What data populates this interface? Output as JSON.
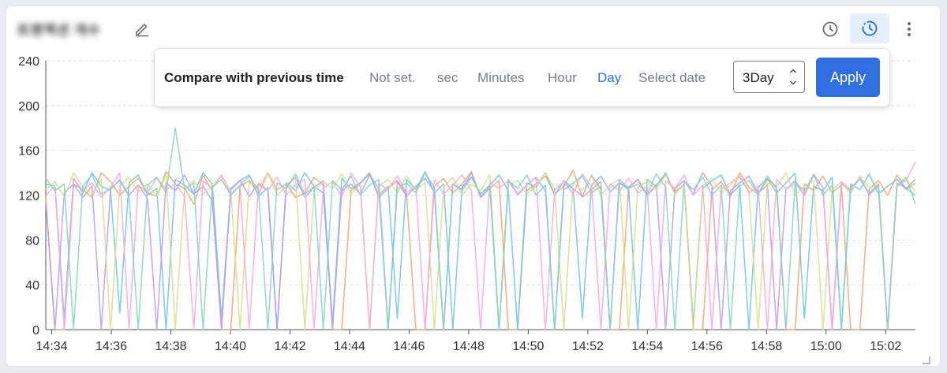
{
  "widget": {
    "title_blurred": "트랜잭션 개수"
  },
  "header": {
    "edit_icon": "pencil-icon",
    "clock_icon": "clock-icon",
    "compare_icon": "clock-history-icon",
    "more_icon": "kebab-menu-icon"
  },
  "compare_popover": {
    "heading": "Compare with previous time",
    "options": [
      "Not set.",
      "sec",
      "Minutes",
      "Hour",
      "Day",
      "Select date"
    ],
    "selected_option": "Day",
    "select_value": "3Day",
    "apply_label": "Apply",
    "accent_color": "#2f6fe0"
  },
  "chart_data": {
    "type": "line",
    "title": "",
    "xlabel": "",
    "ylabel": "",
    "ylim": [
      0,
      240
    ],
    "y_ticks": [
      "0",
      "40",
      "80",
      "120",
      "160",
      "200",
      "240"
    ],
    "x_ticks": [
      "14:34",
      "14:36",
      "14:38",
      "14:40",
      "14:42",
      "14:44",
      "14:46",
      "14:48",
      "14:50",
      "14:52",
      "14:54",
      "14:56",
      "14:58",
      "15:00",
      "15:02"
    ],
    "x_range_minutes": [
      33.8,
      63.0
    ],
    "grid": true,
    "legend": "none",
    "series": [
      {
        "color": "#f4a36d",
        "values": [
          118,
          0,
          0,
          130,
          125,
          118,
          140,
          132,
          120,
          128,
          135,
          122,
          119,
          141,
          130,
          126,
          112,
          138,
          124,
          0,
          0,
          128,
          133,
          121,
          140,
          125,
          130,
          118,
          122,
          136,
          129,
          0,
          0,
          124,
          131,
          140,
          118,
          126,
          133,
          121,
          0,
          0,
          128,
          135,
          122,
          130,
          141,
          119,
          126,
          133,
          0,
          0,
          124,
          130,
          137,
          121,
          128,
          142,
          118,
          125,
          132,
          0,
          0,
          127,
          134,
          120,
          129,
          138,
          123,
          130,
          0,
          0,
          125,
          132,
          119,
          140,
          127,
          121,
          134,
          128,
          0,
          0,
          130,
          124,
          137,
          122,
          129,
          0,
          0,
          126,
          133,
          120,
          138,
          125,
          131
        ]
      },
      {
        "color": "#6fc3e8",
        "values": [
          130,
          128,
          10,
          135,
          122,
          140,
          128,
          124,
          15,
          131,
          138,
          120,
          126,
          0,
          134,
          129,
          121,
          140,
          130,
          10,
          125,
          133,
          138,
          119,
          127,
          0,
          131,
          124,
          140,
          128,
          122,
          5,
          135,
          126,
          131,
          139,
          120,
          128,
          10,
          134,
          125,
          141,
          122,
          130,
          0,
          128,
          136,
          121,
          129,
          138,
          124,
          0,
          131,
          127,
          140,
          120,
          133,
          126,
          10,
          129,
          137,
          123,
          131,
          125,
          0,
          134,
          128,
          140,
          121,
          130,
          5,
          126,
          133,
          138,
          120,
          129,
          0,
          127,
          135,
          122,
          131,
          140,
          10,
          128,
          124,
          136,
          0,
          130,
          125,
          139,
          121,
          128,
          134,
          126,
          120
        ]
      },
      {
        "color": "#b99cf0",
        "values": [
          115,
          0,
          122,
          130,
          118,
          128,
          0,
          125,
          134,
          120,
          129,
          117,
          0,
          131,
          124,
          138,
          121,
          128,
          115,
          0,
          126,
          133,
          119,
          130,
          124,
          0,
          129,
          136,
          118,
          127,
          133,
          0,
          124,
          130,
          121,
          138,
          126,
          0,
          132,
          119,
          128,
          135,
          123,
          0,
          130,
          125,
          140,
          118,
          127,
          0,
          134,
          121,
          129,
          136,
          124,
          0,
          130,
          126,
          119,
          138,
          125,
          0,
          131,
          127,
          134,
          120,
          129,
          0,
          126,
          133,
          121,
          140,
          128,
          0,
          124,
          131,
          137,
          122,
          129,
          0,
          125,
          133,
          120,
          138,
          127,
          0,
          130,
          124,
          136,
          121,
          128,
          0,
          131,
          126,
          134
        ]
      },
      {
        "color": "#d7de8c",
        "values": [
          125,
          132,
          118,
          140,
          127,
          121,
          134,
          0,
          128,
          136,
          123,
          130,
          119,
          138,
          0,
          126,
          133,
          121,
          129,
          137,
          124,
          0,
          131,
          127,
          140,
          120,
          128,
          135,
          0,
          124,
          132,
          126,
          139,
          121,
          130,
          0,
          128,
          134,
          122,
          137,
          125,
          131,
          0,
          127,
          136,
          120,
          130,
          124,
          138,
          0,
          129,
          133,
          121,
          128,
          140,
          126,
          0,
          131,
          124,
          137,
          120,
          129,
          134,
          0,
          127,
          132,
          125,
          138,
          121,
          130,
          0,
          128,
          135,
          122,
          129,
          136,
          124,
          0,
          131,
          127,
          140,
          120,
          128,
          133,
          0,
          125,
          132,
          121,
          137,
          126,
          130,
          0,
          129,
          134,
          123
        ]
      },
      {
        "color": "#f7a9d9",
        "values": [
          120,
          128,
          0,
          135,
          124,
          131,
          118,
          127,
          140,
          0,
          129,
          122,
          136,
          125,
          130,
          119,
          0,
          133,
          126,
          138,
          121,
          128,
          0,
          131,
          124,
          136,
          120,
          129,
          134,
          0,
          126,
          132,
          119,
          140,
          127,
          0,
          130,
          125,
          137,
          122,
          128,
          0,
          134,
          121,
          129,
          138,
          124,
          0,
          131,
          126,
          133,
          120,
          129,
          136,
          0,
          125,
          132,
          121,
          139,
          127,
          0,
          130,
          124,
          135,
          122,
          128,
          0,
          133,
          126,
          138,
          120,
          129,
          0,
          125,
          131,
          137,
          122,
          128,
          0,
          134,
          126,
          130,
          121,
          139,
          127,
          0,
          132,
          125,
          136,
          120,
          129,
          0,
          128,
          133,
          150
        ]
      },
      {
        "color": "#82d4c4",
        "values": [
          135,
          124,
          130,
          0,
          128,
          138,
          121,
          126,
          133,
          119,
          0,
          129,
          136,
          122,
          180,
          125,
          131,
          0,
          127,
          134,
          120,
          129,
          137,
          124,
          0,
          131,
          126,
          139,
          121,
          128,
          0,
          133,
          125,
          137,
          120,
          129,
          134,
          0,
          126,
          131,
          122,
          140,
          127,
          0,
          130,
          124,
          136,
          121,
          128,
          0,
          133,
          126,
          138,
          120,
          129,
          0,
          125,
          131,
          137,
          122,
          128,
          0,
          134,
          126,
          130,
          121,
          139,
          127,
          0,
          132,
          125,
          136,
          120,
          129,
          0,
          128,
          133,
          121,
          137,
          126,
          0,
          131,
          124,
          138,
          120,
          129,
          0,
          127,
          134,
          122,
          130,
          0,
          128,
          136,
          112
        ]
      }
    ]
  }
}
